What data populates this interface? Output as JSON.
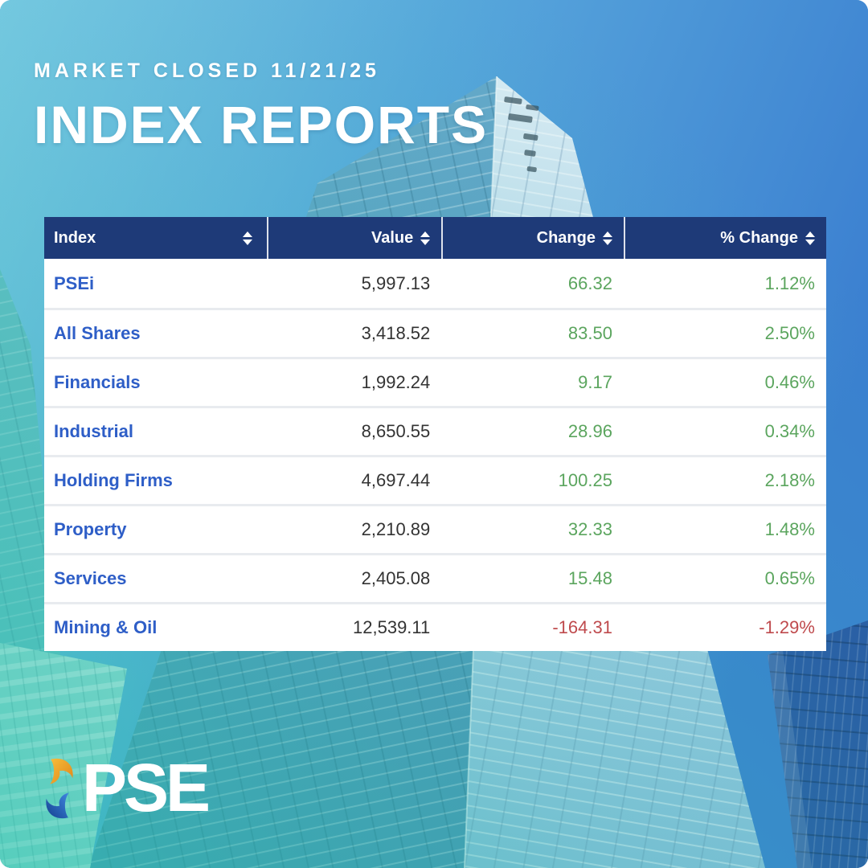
{
  "header": {
    "subtitle": "MARKET CLOSED 11/21/25",
    "title": "INDEX REPORTS"
  },
  "table": {
    "columns": [
      {
        "label": "Index"
      },
      {
        "label": "Value"
      },
      {
        "label": "Change"
      },
      {
        "label": "% Change"
      }
    ],
    "rows": [
      {
        "index": "PSEi",
        "value": "5,997.13",
        "change": "66.32",
        "pct_change": "1.12%",
        "direction": "up"
      },
      {
        "index": "All Shares",
        "value": "3,418.52",
        "change": "83.50",
        "pct_change": "2.50%",
        "direction": "up"
      },
      {
        "index": "Financials",
        "value": "1,992.24",
        "change": "9.17",
        "pct_change": "0.46%",
        "direction": "up"
      },
      {
        "index": "Industrial",
        "value": "8,650.55",
        "change": "28.96",
        "pct_change": "0.34%",
        "direction": "up"
      },
      {
        "index": "Holding Firms",
        "value": "4,697.44",
        "change": "100.25",
        "pct_change": "2.18%",
        "direction": "up"
      },
      {
        "index": "Property",
        "value": "2,210.89",
        "change": "32.33",
        "pct_change": "1.48%",
        "direction": "up"
      },
      {
        "index": "Services",
        "value": "2,405.08",
        "change": "15.48",
        "pct_change": "0.65%",
        "direction": "up"
      },
      {
        "index": "Mining & Oil",
        "value": "12,539.11",
        "change": "-164.31",
        "pct_change": "-1.29%",
        "direction": "down"
      }
    ]
  },
  "logo": {
    "text": "PSE"
  },
  "colors": {
    "header_bg": "#1e3a78",
    "index_link": "#2e5ec7",
    "value_text": "#333333",
    "positive": "#5ba55e",
    "negative": "#bf4a4d",
    "logo_gold": "#f0a21b",
    "logo_blue": "#2a67c9"
  }
}
